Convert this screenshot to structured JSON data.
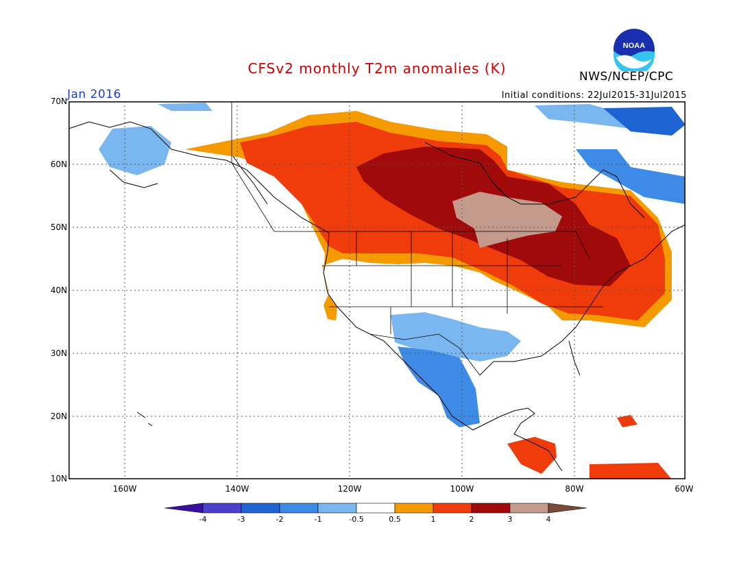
{
  "title": "CFSv2 monthly T2m anomalies (K)",
  "agency": "NWS/NCEP/CPC",
  "logo_text": "NOAA",
  "month_label": "Jan 2016",
  "initial_conditions": "Initial conditions: 22Jul2015-31Jul2015",
  "latitude_labels": [
    "70N",
    "60N",
    "50N",
    "40N",
    "30N",
    "20N",
    "10N"
  ],
  "longitude_labels": [
    "160W",
    "140W",
    "120W",
    "100W",
    "80W",
    "60W"
  ],
  "colorbar": {
    "tick_labels": [
      "-4",
      "-3",
      "-2",
      "-1",
      "-0.5",
      "0.5",
      "1",
      "2",
      "3",
      "4"
    ],
    "colors": [
      "#3a0fa0",
      "#4b3fcf",
      "#1e64d2",
      "#3d8be6",
      "#7ab6f0",
      "#ffffff",
      "#f59a00",
      "#f03c0a",
      "#a00a0a",
      "#c49a8c",
      "#7a4a3a"
    ]
  }
}
